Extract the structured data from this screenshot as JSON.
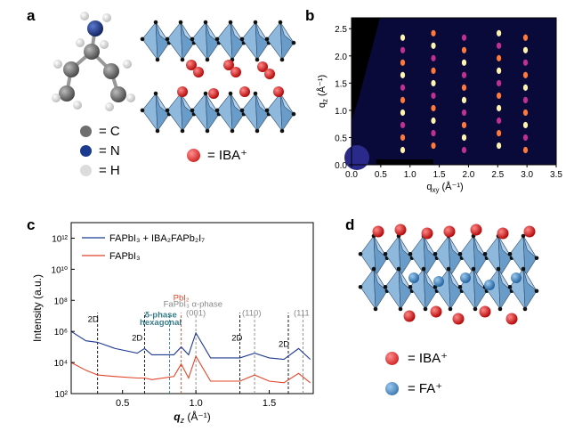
{
  "panels": {
    "a": {
      "letter": "a",
      "legend": [
        {
          "symbol": "C",
          "text": "= C",
          "color": "#6e6e6e"
        },
        {
          "symbol": "N",
          "text": "= N",
          "color": "#1a3a8e"
        },
        {
          "symbol": "H",
          "text": "= H",
          "color": "#d8d8d8"
        }
      ],
      "cation_label": "= IBA⁺",
      "cation_color": "#e52222"
    },
    "b": {
      "letter": "b",
      "ylabel": "q₂ (Å⁻¹)",
      "ylabel_main": "q",
      "ylabel_sub": "z",
      "ylabel_unit": " (Å⁻¹)",
      "xlabel_main": "q",
      "xlabel_sub": "xy",
      "xlabel_unit": " (Å⁻¹)",
      "xticks": [
        "0.0",
        "0.5",
        "1.0",
        "1.5",
        "2.0",
        "2.5",
        "3.0",
        "3.5"
      ],
      "yticks": [
        "0.0",
        "0.5",
        "1.0",
        "1.5",
        "2.0",
        "2.5"
      ]
    },
    "c": {
      "letter": "c",
      "ylabel": "Intensity (a.u.)",
      "xlabel_main": "q",
      "xlabel_sub": "z",
      "xlabel_unit": " (Å⁻¹)",
      "legend": [
        {
          "name": "FAPbI₃ + IBA₂FAPb₂I₇",
          "color": "#1f3a93"
        },
        {
          "name": "FAPbI₃",
          "color": "#e0452a"
        }
      ],
      "annotations": [
        {
          "text": "2D",
          "color": "#000000"
        },
        {
          "text": "2D",
          "color": "#000000"
        },
        {
          "text": "δ-phase",
          "color": "#3a7d8a"
        },
        {
          "text": "hexagonal",
          "color": "#3a7d8a"
        },
        {
          "text": "PbI₂",
          "color": "#e0452a"
        },
        {
          "text": "FaPbI₃ α-phase",
          "color": "#888888"
        },
        {
          "text": "(001)",
          "color": "#888888"
        },
        {
          "text": "(110)",
          "color": "#888888"
        },
        {
          "text": "2D",
          "color": "#000000"
        },
        {
          "text": "2D",
          "color": "#000000"
        },
        {
          "text": "(111",
          "color": "#888888"
        }
      ],
      "xticks": [
        "0.5",
        "1.0",
        "1.5"
      ],
      "yticks": [
        "10²",
        "10⁴",
        "10⁶",
        "10⁸",
        "10¹⁰",
        "10¹²"
      ]
    },
    "d": {
      "letter": "d",
      "legend": [
        {
          "text": "= IBA⁺",
          "color": "#e52222"
        },
        {
          "text": "= FA⁺",
          "color": "#3a86c8"
        }
      ]
    }
  },
  "chart_data": {
    "type": "line",
    "xlabel": "qz (Å⁻¹)",
    "ylabel": "Intensity (a.u.)",
    "xlim": [
      0.15,
      1.8
    ],
    "ylim_log10": [
      2,
      13
    ],
    "yscale": "log",
    "series": [
      {
        "name": "FAPbI3 + IBA2FAPb2I7",
        "x": [
          0.15,
          0.25,
          0.33,
          0.45,
          0.6,
          0.65,
          0.7,
          0.85,
          0.9,
          0.95,
          1.0,
          1.1,
          1.3,
          1.4,
          1.5,
          1.6,
          1.7,
          1.78
        ],
        "log10_y": [
          6.0,
          5.4,
          5.3,
          4.9,
          4.6,
          4.9,
          4.5,
          4.5,
          5.0,
          4.5,
          5.9,
          4.3,
          4.3,
          4.6,
          4.3,
          4.2,
          4.9,
          4.2
        ]
      },
      {
        "name": "FAPbI3",
        "x": [
          0.15,
          0.25,
          0.33,
          0.45,
          0.6,
          0.65,
          0.7,
          0.85,
          0.9,
          0.95,
          1.0,
          1.1,
          1.3,
          1.4,
          1.5,
          1.6,
          1.7,
          1.78
        ],
        "log10_y": [
          4.0,
          3.5,
          3.2,
          3.1,
          3.0,
          3.0,
          2.9,
          3.1,
          3.9,
          3.0,
          4.4,
          2.8,
          2.8,
          3.2,
          2.8,
          2.7,
          3.3,
          2.7
        ]
      }
    ]
  }
}
